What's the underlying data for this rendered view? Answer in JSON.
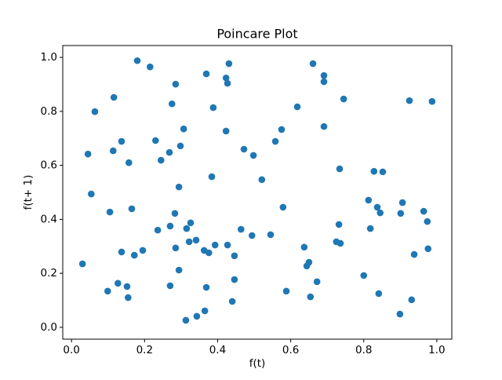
{
  "chart_data": {
    "type": "scatter",
    "title": "Poincare Plot",
    "x_label": "f(t)",
    "y_label": "f(t+ 1)",
    "color": "#1f77b4",
    "grid": false,
    "xlim": [
      -0.024,
      1.041
    ],
    "ylim": [
      -0.044,
      1.044
    ],
    "xticks": [
      {
        "value": 0,
        "label": "0.0"
      },
      {
        "value": 0.2,
        "label": "0.2"
      },
      {
        "value": 0.4,
        "label": "0.4"
      },
      {
        "value": 0.6,
        "label": "0.6"
      },
      {
        "value": 0.8,
        "label": "0.8"
      },
      {
        "value": 1,
        "label": "1.0"
      }
    ],
    "yticks": [
      {
        "value": 0,
        "label": "0.0"
      },
      {
        "value": 0.2,
        "label": "0.2"
      },
      {
        "value": 0.4,
        "label": "0.4"
      },
      {
        "value": 0.6,
        "label": "0.6"
      },
      {
        "value": 0.8,
        "label": "0.8"
      },
      {
        "value": 1,
        "label": "1.0"
      }
    ],
    "x": [
      0.03,
      0.045,
      0.054,
      0.064,
      0.114,
      0.116,
      0.137,
      0.105,
      0.127,
      0.099,
      0.137,
      0.152,
      0.155,
      0.157,
      0.165,
      0.172,
      0.18,
      0.195,
      0.215,
      0.23,
      0.236,
      0.245,
      0.268,
      0.27,
      0.27,
      0.275,
      0.285,
      0.283,
      0.285,
      0.294,
      0.294,
      0.298,
      0.307,
      0.313,
      0.315,
      0.326,
      0.322,
      0.341,
      0.343,
      0.363,
      0.365,
      0.369,
      0.369,
      0.376,
      0.384,
      0.388,
      0.393,
      0.423,
      0.423,
      0.427,
      0.427,
      0.431,
      0.44,
      0.446,
      0.446,
      0.464,
      0.472,
      0.494,
      0.498,
      0.521,
      0.545,
      0.558,
      0.575,
      0.579,
      0.588,
      0.618,
      0.637,
      0.644,
      0.65,
      0.654,
      0.661,
      0.672,
      0.691,
      0.691,
      0.691,
      0.725,
      0.732,
      0.734,
      0.736,
      0.745,
      0.8,
      0.813,
      0.818,
      0.828,
      0.837,
      0.841,
      0.845,
      0.852,
      0.899,
      0.906,
      0.901,
      0.925,
      0.931,
      0.938,
      0.964,
      0.974,
      0.976,
      0.987
    ],
    "values": [
      0.235,
      0.642,
      0.494,
      0.799,
      0.654,
      0.852,
      0.689,
      0.427,
      0.163,
      0.134,
      0.279,
      0.151,
      0.11,
      0.61,
      0.439,
      0.267,
      0.988,
      0.285,
      0.965,
      0.692,
      0.36,
      0.619,
      0.648,
      0.375,
      0.154,
      0.828,
      0.901,
      0.422,
      0.294,
      0.52,
      0.212,
      0.672,
      0.735,
      0.026,
      0.366,
      0.387,
      0.317,
      0.323,
      0.041,
      0.285,
      0.061,
      0.148,
      0.939,
      0.276,
      0.558,
      0.814,
      0.305,
      0.727,
      0.924,
      0.904,
      0.305,
      0.977,
      0.096,
      0.265,
      0.177,
      0.363,
      0.66,
      0.34,
      0.637,
      0.547,
      0.343,
      0.689,
      0.733,
      0.445,
      0.134,
      0.817,
      0.297,
      0.227,
      0.241,
      0.113,
      0.977,
      0.169,
      0.933,
      0.91,
      0.744,
      0.317,
      0.381,
      0.587,
      0.311,
      0.846,
      0.192,
      0.471,
      0.366,
      0.578,
      0.445,
      0.125,
      0.424,
      0.576,
      0.049,
      0.462,
      0.422,
      0.84,
      0.102,
      0.27,
      0.43,
      0.392,
      0.291,
      0.837
    ]
  }
}
